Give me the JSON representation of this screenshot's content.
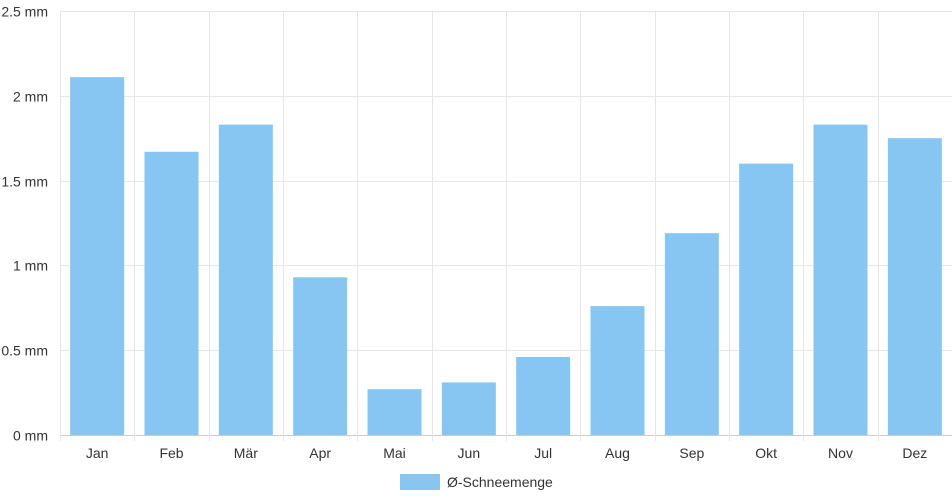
{
  "chart_data": {
    "type": "bar",
    "categories": [
      "Jan",
      "Feb",
      "Mär",
      "Apr",
      "Mai",
      "Jun",
      "Jul",
      "Aug",
      "Sep",
      "Okt",
      "Nov",
      "Dez"
    ],
    "series": [
      {
        "name": "Ø-Schneemenge",
        "color": "#87c5f2",
        "values": [
          2.11,
          1.67,
          1.83,
          0.93,
          0.27,
          0.31,
          0.46,
          0.76,
          1.19,
          1.6,
          1.83,
          1.75
        ]
      }
    ],
    "y_ticks": [
      "0 mm",
      "0.5 mm",
      "1 mm",
      "1.5 mm",
      "2 mm",
      "2.5 mm"
    ],
    "ylim": [
      0,
      2.5
    ],
    "grid": true,
    "legend_position": "bottom-center",
    "colors": {
      "grid": "#e6e6e6",
      "axis": "#cccccc",
      "text": "#333333"
    }
  }
}
